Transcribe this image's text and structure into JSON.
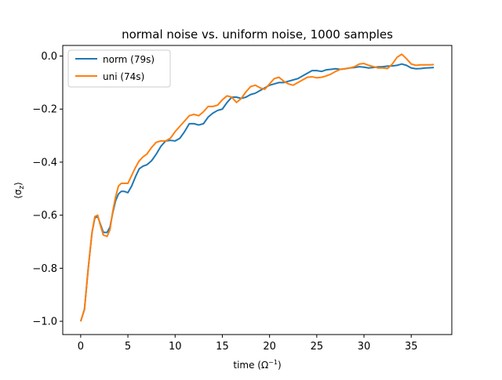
{
  "chart_data": {
    "type": "line",
    "title": "normal noise vs. uniform noise, 1000 samples",
    "xlabel_main": "time (",
    "xlabel_unit": "Ω",
    "xlabel_sup": "−1",
    "xlabel_close": ")",
    "ylabel_open": "⟨σ",
    "ylabel_sub": "z",
    "ylabel_close": "⟩",
    "xlim": [
      -1.9,
      39.3
    ],
    "ylim": [
      -1.05,
      0.04
    ],
    "xticks": [
      0,
      5,
      10,
      15,
      20,
      25,
      30,
      35
    ],
    "xtick_labels": [
      "0",
      "5",
      "10",
      "15",
      "20",
      "25",
      "30",
      "35"
    ],
    "yticks": [
      0.0,
      -0.2,
      -0.4,
      -0.6,
      -0.8,
      -1.0
    ],
    "ytick_labels": [
      "0.0",
      "−0.2",
      "−0.4",
      "−0.6",
      "−0.8",
      "−1.0"
    ],
    "grid": false,
    "legend_position": "top-left",
    "series": [
      {
        "name": "norm (79s)",
        "color": "#1f77b4",
        "x": [
          0.0,
          0.4,
          0.8,
          1.2,
          1.5,
          1.8,
          2.1,
          2.4,
          2.8,
          3.1,
          3.4,
          3.7,
          4.0,
          4.3,
          4.6,
          5.0,
          5.4,
          5.8,
          6.2,
          6.6,
          7.0,
          7.5,
          8.0,
          8.5,
          9.0,
          9.5,
          10.0,
          10.5,
          11.0,
          11.5,
          12.0,
          12.5,
          13.0,
          13.5,
          14.0,
          14.5,
          15.0,
          15.5,
          16.0,
          16.5,
          17.0,
          17.5,
          18.0,
          18.5,
          19.0,
          19.5,
          20.0,
          20.5,
          21.0,
          21.5,
          22.0,
          22.5,
          23.0,
          23.5,
          24.0,
          24.5,
          25.0,
          25.5,
          26.0,
          26.5,
          27.0,
          27.5,
          28.0,
          28.5,
          29.0,
          29.5,
          30.0,
          30.5,
          31.0,
          31.5,
          32.0,
          32.5,
          33.0,
          33.5,
          34.0,
          34.5,
          35.0,
          35.5,
          36.0,
          36.5,
          37.0,
          37.4
        ],
        "values": [
          -1.0,
          -0.955,
          -0.8,
          -0.665,
          -0.61,
          -0.605,
          -0.635,
          -0.665,
          -0.665,
          -0.645,
          -0.59,
          -0.545,
          -0.52,
          -0.51,
          -0.51,
          -0.515,
          -0.49,
          -0.455,
          -0.425,
          -0.415,
          -0.41,
          -0.395,
          -0.37,
          -0.34,
          -0.32,
          -0.318,
          -0.32,
          -0.31,
          -0.285,
          -0.255,
          -0.255,
          -0.26,
          -0.255,
          -0.23,
          -0.215,
          -0.205,
          -0.2,
          -0.175,
          -0.155,
          -0.155,
          -0.16,
          -0.155,
          -0.145,
          -0.14,
          -0.13,
          -0.12,
          -0.11,
          -0.105,
          -0.1,
          -0.1,
          -0.095,
          -0.09,
          -0.085,
          -0.075,
          -0.065,
          -0.055,
          -0.055,
          -0.058,
          -0.052,
          -0.05,
          -0.048,
          -0.05,
          -0.048,
          -0.045,
          -0.043,
          -0.04,
          -0.042,
          -0.045,
          -0.043,
          -0.041,
          -0.04,
          -0.038,
          -0.037,
          -0.035,
          -0.03,
          -0.035,
          -0.045,
          -0.048,
          -0.047,
          -0.045,
          -0.044,
          -0.043
        ]
      },
      {
        "name": "uni (74s)",
        "color": "#ff7f0e",
        "x": [
          0.0,
          0.4,
          0.8,
          1.2,
          1.5,
          1.8,
          2.1,
          2.4,
          2.8,
          3.1,
          3.4,
          3.7,
          4.0,
          4.3,
          4.6,
          5.0,
          5.4,
          5.8,
          6.2,
          6.6,
          7.0,
          7.5,
          8.0,
          8.5,
          9.0,
          9.5,
          10.0,
          10.5,
          11.0,
          11.5,
          12.0,
          12.5,
          13.0,
          13.5,
          14.0,
          14.5,
          15.0,
          15.5,
          16.0,
          16.5,
          17.0,
          17.5,
          18.0,
          18.5,
          19.0,
          19.5,
          20.0,
          20.5,
          21.0,
          21.5,
          22.0,
          22.5,
          23.0,
          23.5,
          24.0,
          24.5,
          25.0,
          25.5,
          26.0,
          26.5,
          27.0,
          27.5,
          28.0,
          28.5,
          29.0,
          29.5,
          30.0,
          30.5,
          31.0,
          31.5,
          32.0,
          32.5,
          33.0,
          33.5,
          34.0,
          34.5,
          35.0,
          35.5,
          36.0,
          36.5,
          37.0,
          37.4
        ],
        "values": [
          -1.0,
          -0.955,
          -0.8,
          -0.665,
          -0.605,
          -0.6,
          -0.64,
          -0.675,
          -0.68,
          -0.655,
          -0.585,
          -0.53,
          -0.49,
          -0.48,
          -0.48,
          -0.48,
          -0.45,
          -0.42,
          -0.395,
          -0.38,
          -0.37,
          -0.345,
          -0.325,
          -0.32,
          -0.32,
          -0.31,
          -0.285,
          -0.265,
          -0.245,
          -0.225,
          -0.22,
          -0.225,
          -0.21,
          -0.19,
          -0.19,
          -0.185,
          -0.165,
          -0.15,
          -0.155,
          -0.175,
          -0.16,
          -0.135,
          -0.115,
          -0.11,
          -0.12,
          -0.125,
          -0.105,
          -0.085,
          -0.08,
          -0.095,
          -0.105,
          -0.11,
          -0.1,
          -0.09,
          -0.08,
          -0.078,
          -0.082,
          -0.08,
          -0.075,
          -0.068,
          -0.058,
          -0.05,
          -0.048,
          -0.045,
          -0.04,
          -0.03,
          -0.028,
          -0.035,
          -0.04,
          -0.045,
          -0.045,
          -0.047,
          -0.03,
          -0.005,
          0.007,
          -0.01,
          -0.03,
          -0.035,
          -0.033,
          -0.033,
          -0.033,
          -0.032
        ]
      }
    ]
  }
}
